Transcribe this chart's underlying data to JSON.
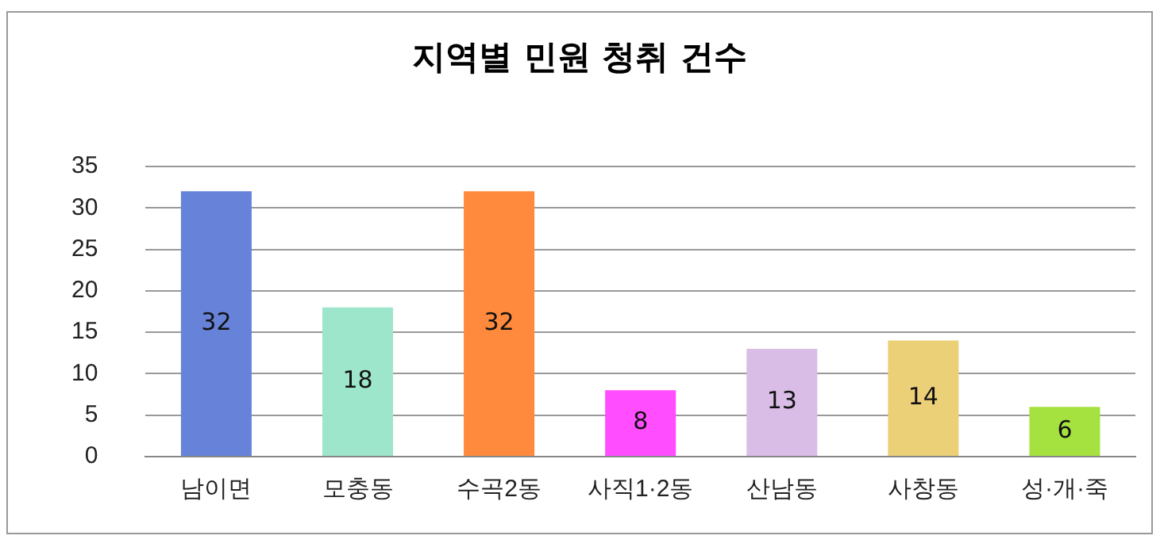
{
  "chart_data": {
    "type": "bar",
    "title": "지역별 민원 청취 건수",
    "categories": [
      "남이면",
      "모충동",
      "수곡2동",
      "사직1·2동",
      "산남동",
      "사창동",
      "성·개·죽"
    ],
    "values": [
      32,
      18,
      32,
      8,
      13,
      14,
      6
    ],
    "colors": [
      "#6683d9",
      "#9de6cc",
      "#ff8a3d",
      "#ff4dff",
      "#d9bde6",
      "#ebd078",
      "#a6e23f"
    ],
    "ylim": [
      0,
      35
    ],
    "yticks": [
      0,
      5,
      10,
      15,
      20,
      25,
      30,
      35
    ],
    "grid": "y",
    "data_labels": true
  }
}
